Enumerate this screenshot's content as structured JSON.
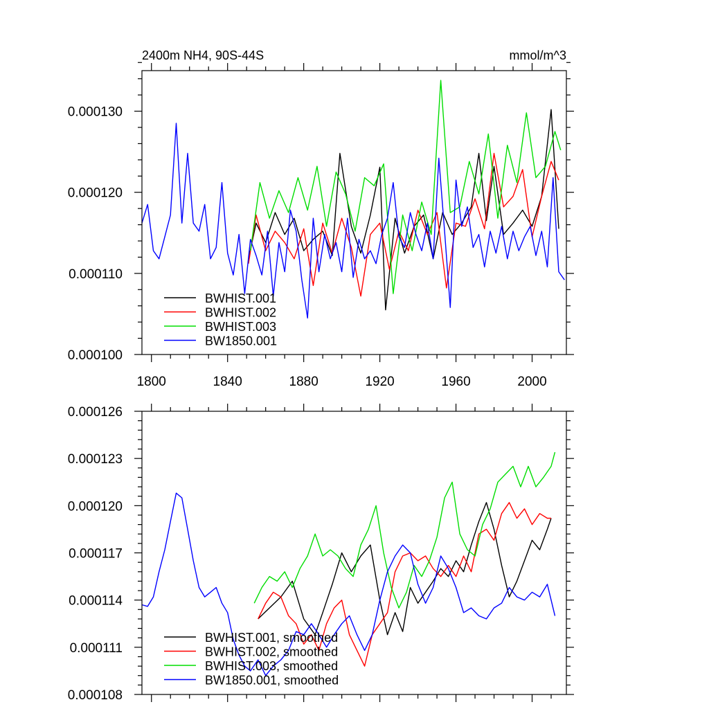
{
  "chart_data": [
    {
      "type": "line",
      "title": "2400m NH4, 90S-44S",
      "units": "mmol/m^3",
      "xlabel": "",
      "ylabel": "",
      "xlim": [
        1795,
        2018
      ],
      "ylim": [
        0.0001,
        0.000135
      ],
      "x_ticks": [
        1800,
        1840,
        1880,
        1920,
        1960,
        2000
      ],
      "x_tick_labels": [
        "1800",
        "1840",
        "1880",
        "1920",
        "1960",
        "2000"
      ],
      "y_ticks": [
        0.0001,
        0.00011,
        0.00012,
        0.00013
      ],
      "y_tick_labels": [
        "0.000100",
        "0.000110",
        "0.000120",
        "0.000130"
      ],
      "legend_position": "bottom-left",
      "series": [
        {
          "name": "BWHIST.001",
          "color": "#000000",
          "x": [
            1851,
            1855,
            1860,
            1865,
            1870,
            1875,
            1880,
            1885,
            1890,
            1895,
            1899,
            1905,
            1910,
            1915,
            1920,
            1923,
            1928,
            1933,
            1938,
            1943,
            1948,
            1953,
            1958,
            1963,
            1968,
            1972,
            1976,
            1980,
            1985,
            1990,
            1995,
            2000,
            2005,
            2010,
            2014
          ],
          "y": [
            0.0001118,
            0.0001162,
            0.0001138,
            0.0001175,
            0.0001148,
            0.0001168,
            0.0001128,
            0.0001142,
            0.0001152,
            0.0001122,
            0.0001248,
            0.0001158,
            0.0001125,
            0.0001172,
            0.0001231,
            0.0001055,
            0.0001168,
            0.0001125,
            0.0001158,
            0.0001172,
            0.0001118,
            0.0001175,
            0.0001148,
            0.0001162,
            0.0001182,
            0.0001248,
            0.0001165,
            0.0001232,
            0.0001148,
            0.0001162,
            0.0001178,
            0.0001158,
            0.0001195,
            0.0001302,
            0.0001155
          ]
        },
        {
          "name": "BWHIST.002",
          "color": "#ff0000",
          "x": [
            1851,
            1855,
            1860,
            1865,
            1870,
            1875,
            1880,
            1885,
            1890,
            1895,
            1900,
            1905,
            1910,
            1915,
            1920,
            1925,
            1930,
            1935,
            1940,
            1945,
            1950,
            1955,
            1960,
            1965,
            1970,
            1975,
            1980,
            1985,
            1990,
            1995,
            2000,
            2005,
            2010,
            2014
          ],
          "y": [
            0.0001112,
            0.0001172,
            0.0001128,
            0.0001152,
            0.0001138,
            0.0001118,
            0.0001155,
            0.0001085,
            0.0001162,
            0.0001125,
            0.0001168,
            0.0001132,
            0.0001072,
            0.0001148,
            0.0001162,
            0.0001105,
            0.0001152,
            0.0001128,
            0.0001178,
            0.0001148,
            0.0001175,
            0.0001082,
            0.0001162,
            0.0001158,
            0.0001192,
            0.0001155,
            0.0001248,
            0.0001182,
            0.0001195,
            0.0001228,
            0.0001145,
            0.0001195,
            0.0001238,
            0.0001215
          ]
        },
        {
          "name": "BWHIST.003",
          "color": "#00dd00",
          "x": [
            1852,
            1857,
            1862,
            1867,
            1872,
            1877,
            1882,
            1887,
            1892,
            1897,
            1902,
            1907,
            1912,
            1917,
            1922,
            1927,
            1932,
            1937,
            1942,
            1947,
            1952,
            1957,
            1962,
            1967,
            1972,
            1977,
            1982,
            1987,
            1992,
            1997,
            2002,
            2007,
            2012,
            2015
          ],
          "y": [
            0.0001128,
            0.0001212,
            0.0001168,
            0.0001202,
            0.0001175,
            0.0001218,
            0.0001178,
            0.0001232,
            0.0001158,
            0.0001225,
            0.0001198,
            0.0001152,
            0.0001218,
            0.0001208,
            0.0001235,
            0.0001075,
            0.0001172,
            0.0001128,
            0.0001188,
            0.0001148,
            0.0001338,
            0.0001175,
            0.0001182,
            0.0001238,
            0.0001198,
            0.0001272,
            0.0001168,
            0.0001258,
            0.0001212,
            0.0001298,
            0.0001218,
            0.0001232,
            0.0001275,
            0.0001252
          ]
        },
        {
          "name": "BW1850.001",
          "color": "#0000ff",
          "x": [
            1795,
            1798,
            1801,
            1804,
            1807,
            1810,
            1813,
            1816,
            1819,
            1822,
            1825,
            1828,
            1831,
            1834,
            1837,
            1840,
            1843,
            1846,
            1849,
            1852,
            1855,
            1858,
            1861,
            1864,
            1867,
            1870,
            1873,
            1876,
            1879,
            1882,
            1885,
            1888,
            1891,
            1894,
            1897,
            1900,
            1903,
            1906,
            1909,
            1912,
            1915,
            1918,
            1921,
            1924,
            1927,
            1930,
            1933,
            1936,
            1939,
            1942,
            1945,
            1948,
            1951,
            1954,
            1957,
            1960,
            1963,
            1966,
            1969,
            1972,
            1975,
            1978,
            1981,
            1984,
            1987,
            1990,
            1993,
            1996,
            1999,
            2002,
            2005,
            2008,
            2011,
            2014,
            2017
          ],
          "y": [
            0.0001162,
            0.0001185,
            0.0001128,
            0.0001118,
            0.0001145,
            0.0001172,
            0.0001285,
            0.0001162,
            0.0001248,
            0.0001162,
            0.0001152,
            0.0001185,
            0.0001118,
            0.0001132,
            0.0001212,
            0.0001125,
            0.0001098,
            0.0001148,
            0.0001075,
            0.0001142,
            0.0001122,
            0.0001098,
            0.0001152,
            0.0001072,
            0.0001138,
            0.0001102,
            0.0001178,
            0.0001152,
            0.0001092,
            0.0001045,
            0.0001168,
            0.0001102,
            0.0001148,
            0.0001118,
            0.0001138,
            0.0001102,
            0.0001168,
            0.0001095,
            0.0001142,
            0.0001118,
            0.0001128,
            0.0001112,
            0.0001148,
            0.0001168,
            0.0001212,
            0.0001145,
            0.0001132,
            0.0001175,
            0.0001148,
            0.0001128,
            0.0001162,
            0.0001118,
            0.0001242,
            0.0001152,
            0.0001058,
            0.0001215,
            0.0001158,
            0.0001182,
            0.0001132,
            0.0001148,
            0.0001108,
            0.0001152,
            0.0001125,
            0.0001158,
            0.0001118,
            0.0001152,
            0.0001128,
            0.0001145,
            0.0001158,
            0.0001122,
            0.0001152,
            0.0001108,
            0.0001218,
            0.0001102,
            0.0001092
          ]
        }
      ]
    },
    {
      "type": "line",
      "title": "",
      "xlabel": "",
      "ylabel": "",
      "xlim": [
        1795,
        2018
      ],
      "ylim": [
        0.000108,
        0.000126
      ],
      "x_ticks": [
        1800,
        1840,
        1880,
        1920,
        1960,
        2000
      ],
      "x_tick_labels": [],
      "y_ticks": [
        0.000108,
        0.000111,
        0.000114,
        0.000117,
        0.00012,
        0.000123,
        0.000126
      ],
      "y_tick_labels": [
        "0.000108",
        "0.000111",
        "0.000114",
        "0.000117",
        "0.000120",
        "0.000123",
        "0.000126"
      ],
      "legend_position": "bottom-left",
      "series": [
        {
          "name": "BWHIST.001, smoothed",
          "color": "#000000",
          "x": [
            1856,
            1862,
            1868,
            1874,
            1880,
            1886,
            1890,
            1895,
            1900,
            1905,
            1910,
            1915,
            1920,
            1924,
            1928,
            1932,
            1936,
            1940,
            1944,
            1948,
            1952,
            1956,
            1960,
            1964,
            1968,
            1972,
            1976,
            1980,
            1984,
            1988,
            1992,
            1996,
            2000,
            2004,
            2008,
            2010
          ],
          "y": [
            0.0001128,
            0.0001135,
            0.0001142,
            0.0001152,
            0.0001128,
            0.0001118,
            0.0001132,
            0.000115,
            0.000117,
            0.0001158,
            0.0001168,
            0.0001175,
            0.000114,
            0.0001118,
            0.0001132,
            0.000112,
            0.0001148,
            0.0001138,
            0.0001145,
            0.0001152,
            0.000116,
            0.0001155,
            0.0001165,
            0.0001158,
            0.0001175,
            0.000119,
            0.0001202,
            0.0001185,
            0.0001162,
            0.0001142,
            0.0001152,
            0.0001165,
            0.0001178,
            0.0001172,
            0.0001185,
            0.0001192
          ]
        },
        {
          "name": "BWHIST.002, smoothed",
          "color": "#ff0000",
          "x": [
            1856,
            1860,
            1864,
            1868,
            1872,
            1876,
            1880,
            1884,
            1888,
            1892,
            1896,
            1900,
            1904,
            1908,
            1912,
            1916,
            1920,
            1924,
            1928,
            1932,
            1936,
            1940,
            1944,
            1948,
            1952,
            1956,
            1960,
            1964,
            1968,
            1972,
            1976,
            1980,
            1984,
            1988,
            1992,
            1996,
            2000,
            2004,
            2008,
            2010
          ],
          "y": [
            0.0001128,
            0.0001138,
            0.0001145,
            0.0001142,
            0.000113,
            0.0001125,
            0.0001112,
            0.0001118,
            0.0001108,
            0.0001125,
            0.0001135,
            0.000114,
            0.0001118,
            0.0001108,
            0.0001098,
            0.0001118,
            0.0001125,
            0.0001132,
            0.0001158,
            0.0001168,
            0.000117,
            0.0001165,
            0.0001168,
            0.000116,
            0.0001155,
            0.0001162,
            0.0001155,
            0.0001168,
            0.0001158,
            0.0001182,
            0.0001185,
            0.0001178,
            0.0001195,
            0.0001202,
            0.0001192,
            0.0001198,
            0.0001188,
            0.0001195,
            0.0001192,
            0.0001192
          ]
        },
        {
          "name": "BWHIST.003, smoothed",
          "color": "#00dd00",
          "x": [
            1854,
            1858,
            1862,
            1866,
            1870,
            1874,
            1878,
            1882,
            1886,
            1890,
            1894,
            1898,
            1902,
            1906,
            1910,
            1914,
            1918,
            1922,
            1926,
            1930,
            1934,
            1938,
            1942,
            1946,
            1950,
            1954,
            1958,
            1962,
            1966,
            1970,
            1974,
            1978,
            1982,
            1986,
            1990,
            1994,
            1998,
            2002,
            2006,
            2010,
            2012
          ],
          "y": [
            0.0001138,
            0.0001148,
            0.0001155,
            0.0001152,
            0.0001158,
            0.0001148,
            0.000116,
            0.0001168,
            0.0001182,
            0.0001168,
            0.0001172,
            0.0001168,
            0.000116,
            0.0001155,
            0.0001175,
            0.0001185,
            0.00012,
            0.000117,
            0.0001148,
            0.0001135,
            0.0001145,
            0.0001162,
            0.0001155,
            0.0001165,
            0.000118,
            0.0001205,
            0.0001215,
            0.0001182,
            0.0001172,
            0.0001168,
            0.0001188,
            0.0001198,
            0.0001215,
            0.000122,
            0.0001225,
            0.0001212,
            0.0001225,
            0.0001212,
            0.0001218,
            0.0001225,
            0.0001234
          ]
        },
        {
          "name": "BW1850.001, smoothed",
          "color": "#0000ff",
          "x": [
            1795,
            1798,
            1801,
            1804,
            1807,
            1810,
            1813,
            1816,
            1819,
            1822,
            1825,
            1828,
            1831,
            1834,
            1837,
            1840,
            1843,
            1846,
            1849,
            1852,
            1856,
            1860,
            1864,
            1868,
            1872,
            1876,
            1880,
            1884,
            1888,
            1892,
            1896,
            1900,
            1904,
            1908,
            1912,
            1916,
            1920,
            1924,
            1928,
            1932,
            1936,
            1940,
            1944,
            1948,
            1952,
            1956,
            1960,
            1964,
            1968,
            1972,
            1976,
            1980,
            1984,
            1988,
            1992,
            1996,
            2000,
            2004,
            2008,
            2012
          ],
          "y": [
            0.0001137,
            0.0001136,
            0.0001142,
            0.0001158,
            0.0001172,
            0.000119,
            0.0001208,
            0.0001205,
            0.0001185,
            0.0001165,
            0.0001148,
            0.0001142,
            0.0001145,
            0.0001148,
            0.0001138,
            0.0001132,
            0.0001115,
            0.0001105,
            0.0001098,
            0.0001095,
            0.0001102,
            0.0001092,
            0.0001098,
            0.0001102,
            0.0001108,
            0.000112,
            0.0001118,
            0.0001125,
            0.0001118,
            0.000111,
            0.0001118,
            0.0001125,
            0.000113,
            0.0001118,
            0.0001108,
            0.0001118,
            0.000114,
            0.0001158,
            0.0001168,
            0.0001175,
            0.000117,
            0.000115,
            0.0001138,
            0.0001148,
            0.0001168,
            0.000116,
            0.0001148,
            0.0001132,
            0.0001135,
            0.000113,
            0.0001128,
            0.0001135,
            0.0001138,
            0.0001148,
            0.0001142,
            0.000114,
            0.0001145,
            0.0001142,
            0.000115,
            0.000113
          ]
        }
      ]
    }
  ]
}
